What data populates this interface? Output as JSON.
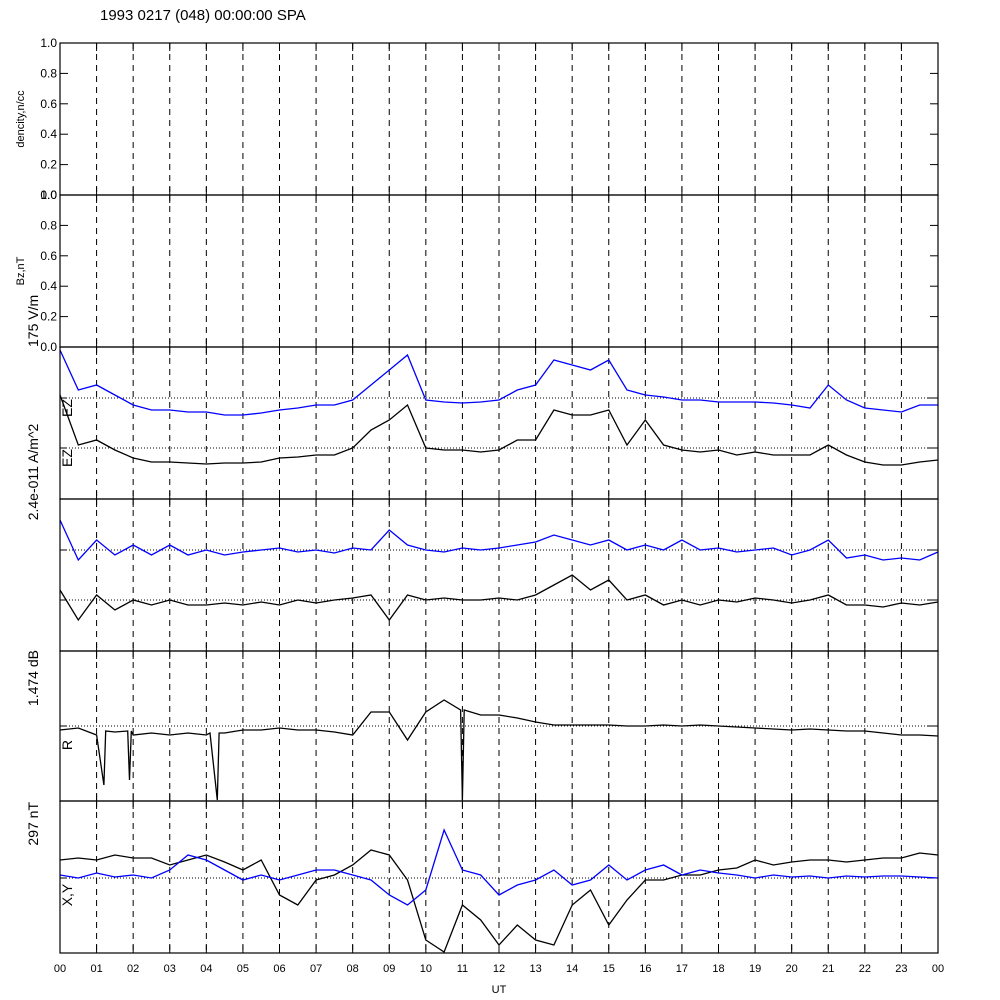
{
  "chart_data": [
    {
      "type": "empty",
      "title": "1993 0217 (048) 00:00:00 SPA",
      "ylabel": "dencity,n/cc",
      "xlim": [
        0,
        24
      ],
      "ylim": [
        0,
        1
      ],
      "yticks": [
        {
          "value": 0,
          "label": "0.0"
        },
        0.2,
        0.4,
        0.6,
        0.8,
        {
          "value": 1,
          "label": "1.0"
        }
      ]
    },
    {
      "type": "empty",
      "ylabel": "Bz,nT",
      "xlim": [
        0,
        24
      ],
      "ylim": [
        0,
        1
      ],
      "yticks": [
        {
          "value": 0,
          "label": "0.0"
        },
        0.2,
        0.4,
        0.6,
        0.8,
        {
          "value": 1,
          "label": "1.0"
        }
      ]
    },
    {
      "type": "line",
      "annotations": [
        "175 V/m",
        "EZ",
        "EZ",
        "2.4e-011 A/m^2"
      ],
      "xlim": [
        0,
        24
      ],
      "ylim": [
        0,
        152
      ],
      "hlines": [
        101,
        51
      ],
      "x": [
        0,
        0.5,
        1,
        1.5,
        2,
        2.5,
        3,
        3.5,
        4,
        4.5,
        5,
        5.5,
        6,
        6.5,
        7,
        7.5,
        8,
        8.5,
        9,
        9.5,
        10,
        10.5,
        11,
        11.5,
        12,
        12.5,
        13,
        13.5,
        14,
        14.5,
        15,
        15.5,
        16,
        16.5,
        17,
        17.5,
        18,
        18.5,
        19,
        19.5,
        20,
        20.5,
        21,
        21.5,
        22,
        22.5,
        23,
        23.5,
        24
      ],
      "series": [
        {
          "color": "#0000ff",
          "values": [
            149,
            109,
            114,
            104,
            94,
            89,
            89,
            87,
            87,
            84,
            84,
            86,
            89,
            91,
            94,
            94,
            99,
            114,
            129,
            144,
            99,
            97,
            96,
            97,
            99,
            109,
            114,
            139,
            134,
            129,
            139,
            109,
            104,
            102,
            99,
            99,
            97,
            97,
            97,
            96,
            94,
            91,
            114,
            99,
            91,
            89,
            87,
            94,
            94
          ]
        },
        {
          "color": "#000000",
          "values": [
            104,
            54,
            59,
            49,
            41,
            37,
            37,
            36,
            35,
            36,
            36,
            37,
            41,
            42,
            44,
            44,
            51,
            69,
            79,
            94,
            51,
            49,
            49,
            47,
            49,
            59,
            59,
            89,
            84,
            84,
            89,
            54,
            79,
            54,
            49,
            47,
            49,
            44,
            47,
            44,
            44,
            44,
            54,
            44,
            37,
            34,
            34,
            37,
            39
          ]
        }
      ]
    },
    {
      "type": "line",
      "annotations": [
        "1.474 dB"
      ],
      "xlim": [
        0,
        24
      ],
      "ylim": [
        0,
        152
      ],
      "hlines": [
        101,
        51
      ],
      "x": [
        0,
        0.5,
        1,
        1.5,
        2,
        2.5,
        3,
        3.5,
        4,
        4.5,
        5,
        5.5,
        6,
        6.5,
        7,
        7.5,
        8,
        8.5,
        9,
        9.5,
        10,
        10.5,
        11,
        11.5,
        12,
        12.5,
        13,
        13.5,
        14,
        14.5,
        15,
        15.5,
        16,
        16.5,
        17,
        17.5,
        18,
        18.5,
        19,
        19.5,
        20,
        20.5,
        21,
        21.5,
        22,
        22.5,
        23,
        23.5,
        24
      ],
      "series": [
        {
          "color": "#0000ff",
          "values": [
            131,
            91,
            111,
            96,
            106,
            96,
            106,
            96,
            101,
            96,
            99,
            101,
            103,
            99,
            101,
            98,
            103,
            101,
            121,
            106,
            101,
            99,
            103,
            101,
            103,
            106,
            109,
            116,
            111,
            106,
            111,
            101,
            106,
            101,
            111,
            101,
            103,
            99,
            101,
            103,
            96,
            101,
            111,
            93,
            96,
            91,
            93,
            91,
            99
          ]
        },
        {
          "color": "#000000",
          "values": [
            61,
            31,
            56,
            41,
            51,
            46,
            51,
            46,
            46,
            48,
            46,
            49,
            46,
            51,
            48,
            51,
            53,
            56,
            31,
            56,
            51,
            53,
            51,
            51,
            53,
            51,
            56,
            66,
            76,
            61,
            71,
            51,
            56,
            46,
            51,
            46,
            51,
            49,
            53,
            51,
            48,
            51,
            56,
            46,
            46,
            44,
            48,
            46,
            49
          ]
        }
      ]
    },
    {
      "type": "line",
      "annotations": [
        "R",
        "297 nT"
      ],
      "xlim": [
        0,
        24
      ],
      "ylim": [
        0,
        150
      ],
      "hlines": [
        75
      ],
      "x": [
        0,
        0.5,
        1,
        1.2,
        1.25,
        1.5,
        1.85,
        1.9,
        1.95,
        2,
        2.5,
        3,
        3.5,
        4,
        4.1,
        4.3,
        4.35,
        4.5,
        5,
        5.5,
        6,
        6.5,
        7,
        7.5,
        8,
        8.5,
        9,
        9.5,
        10,
        10.5,
        10.95,
        11,
        11.05,
        11.5,
        12,
        12.5,
        13,
        13.5,
        14,
        14.5,
        15,
        15.5,
        16,
        16.5,
        17,
        17.5,
        18,
        18.5,
        19,
        19.5,
        20,
        20.5,
        21,
        21.5,
        22,
        22.5,
        23,
        23.5,
        24
      ],
      "series": [
        {
          "color": "#000000",
          "values": [
            71,
            73,
            66,
            16,
            70,
            69,
            70,
            21,
            70,
            66,
            68,
            66,
            68,
            66,
            68,
            1,
            68,
            68,
            71,
            71,
            73,
            71,
            71,
            69,
            66,
            89,
            89,
            61,
            89,
            101,
            91,
            1,
            91,
            86,
            86,
            83,
            79,
            76,
            76,
            76,
            76,
            75,
            75,
            76,
            75,
            76,
            75,
            74,
            73,
            72,
            71,
            72,
            71,
            70,
            70,
            68,
            66,
            66,
            65
          ]
        }
      ]
    },
    {
      "type": "line",
      "annotations": [
        "X,Y"
      ],
      "xlim": [
        0,
        24
      ],
      "ylim": [
        0,
        152
      ],
      "hlines": [
        75
      ],
      "xlabel": "UT",
      "x": [
        0,
        0.5,
        1,
        1.5,
        2,
        2.5,
        3,
        3.5,
        4,
        4.5,
        5,
        5.5,
        6,
        6.5,
        7,
        7.5,
        8,
        8.5,
        9,
        9.5,
        10,
        10.5,
        11,
        11.5,
        12,
        12.5,
        13,
        13.5,
        14,
        14.5,
        15,
        15.5,
        16,
        16.5,
        17,
        17.5,
        18,
        18.5,
        19,
        19.5,
        20,
        20.5,
        21,
        21.5,
        22,
        22.5,
        23,
        23.5,
        24
      ],
      "xticks": [
        {
          "value": 0,
          "label": "00"
        },
        {
          "value": 1,
          "label": "01"
        },
        {
          "value": 2,
          "label": "02"
        },
        {
          "value": 3,
          "label": "03"
        },
        {
          "value": 4,
          "label": "04"
        },
        {
          "value": 5,
          "label": "05"
        },
        {
          "value": 6,
          "label": "06"
        },
        {
          "value": 7,
          "label": "07"
        },
        {
          "value": 8,
          "label": "08"
        },
        {
          "value": 9,
          "label": "09"
        },
        {
          "value": 10,
          "label": "10"
        },
        {
          "value": 11,
          "label": "11"
        },
        {
          "value": 12,
          "label": "12"
        },
        {
          "value": 13,
          "label": "13"
        },
        {
          "value": 14,
          "label": "14"
        },
        {
          "value": 15,
          "label": "15"
        },
        {
          "value": 16,
          "label": "16"
        },
        {
          "value": 17,
          "label": "17"
        },
        {
          "value": 18,
          "label": "18"
        },
        {
          "value": 19,
          "label": "19"
        },
        {
          "value": 20,
          "label": "20"
        },
        {
          "value": 21,
          "label": "21"
        },
        {
          "value": 22,
          "label": "22"
        },
        {
          "value": 23,
          "label": "23"
        },
        {
          "value": 24,
          "label": "00"
        }
      ],
      "series": [
        {
          "color": "#000000",
          "values": [
            93,
            95,
            93,
            98,
            95,
            95,
            88,
            93,
            98,
            91,
            83,
            93,
            58,
            48,
            73,
            78,
            88,
            103,
            98,
            73,
            13,
            1,
            48,
            33,
            8,
            28,
            13,
            8,
            48,
            63,
            28,
            53,
            73,
            73,
            78,
            78,
            83,
            85,
            93,
            88,
            91,
            93,
            93,
            91,
            93,
            95,
            95,
            100,
            98
          ]
        },
        {
          "color": "#0000ff",
          "values": [
            78,
            75,
            80,
            76,
            78,
            75,
            83,
            98,
            93,
            83,
            73,
            78,
            73,
            78,
            83,
            83,
            78,
            73,
            58,
            48,
            63,
            123,
            83,
            78,
            58,
            68,
            73,
            83,
            68,
            73,
            88,
            73,
            83,
            88,
            78,
            83,
            80,
            78,
            75,
            78,
            76,
            77,
            75,
            77,
            76,
            77,
            77,
            76,
            75
          ]
        }
      ]
    }
  ]
}
